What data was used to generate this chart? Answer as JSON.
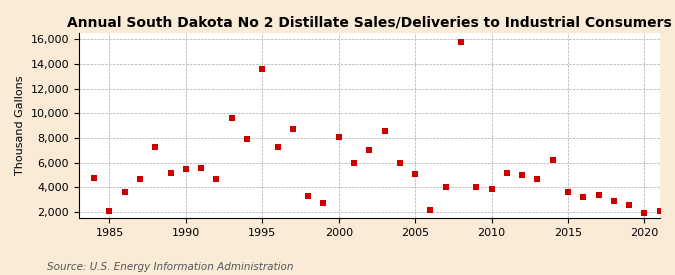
{
  "title": "Annual South Dakota No 2 Distillate Sales/Deliveries to Industrial Consumers",
  "ylabel": "Thousand Gallons",
  "source": "Source: U.S. Energy Information Administration",
  "fig_background_color": "#faebd7",
  "plot_background_color": "#ffffff",
  "marker_color": "#cc0000",
  "marker": "s",
  "marker_size": 18,
  "xlim": [
    1983,
    2021
  ],
  "ylim": [
    1500,
    16500
  ],
  "yticks": [
    2000,
    4000,
    6000,
    8000,
    10000,
    12000,
    14000,
    16000
  ],
  "xticks": [
    1985,
    1990,
    1995,
    2000,
    2005,
    2010,
    2015,
    2020
  ],
  "title_fontsize": 10,
  "axis_fontsize": 8,
  "source_fontsize": 7.5,
  "data": [
    [
      1984,
      4800
    ],
    [
      1985,
      2100
    ],
    [
      1986,
      3600
    ],
    [
      1987,
      4700
    ],
    [
      1988,
      7300
    ],
    [
      1989,
      5200
    ],
    [
      1990,
      5500
    ],
    [
      1991,
      5600
    ],
    [
      1992,
      4700
    ],
    [
      1993,
      9600
    ],
    [
      1994,
      7900
    ],
    [
      1995,
      13600
    ],
    [
      1996,
      7300
    ],
    [
      1997,
      8700
    ],
    [
      1998,
      3300
    ],
    [
      1999,
      2700
    ],
    [
      2000,
      8100
    ],
    [
      2001,
      6000
    ],
    [
      2002,
      7000
    ],
    [
      2003,
      8600
    ],
    [
      2004,
      6000
    ],
    [
      2005,
      5100
    ],
    [
      2006,
      2200
    ],
    [
      2007,
      4000
    ],
    [
      2008,
      15800
    ],
    [
      2009,
      4000
    ],
    [
      2010,
      3900
    ],
    [
      2011,
      5200
    ],
    [
      2012,
      5000
    ],
    [
      2013,
      4700
    ],
    [
      2014,
      6200
    ],
    [
      2015,
      3600
    ],
    [
      2016,
      3200
    ],
    [
      2017,
      3400
    ],
    [
      2018,
      2900
    ],
    [
      2019,
      2600
    ],
    [
      2020,
      1900
    ],
    [
      2021,
      2100
    ]
  ]
}
